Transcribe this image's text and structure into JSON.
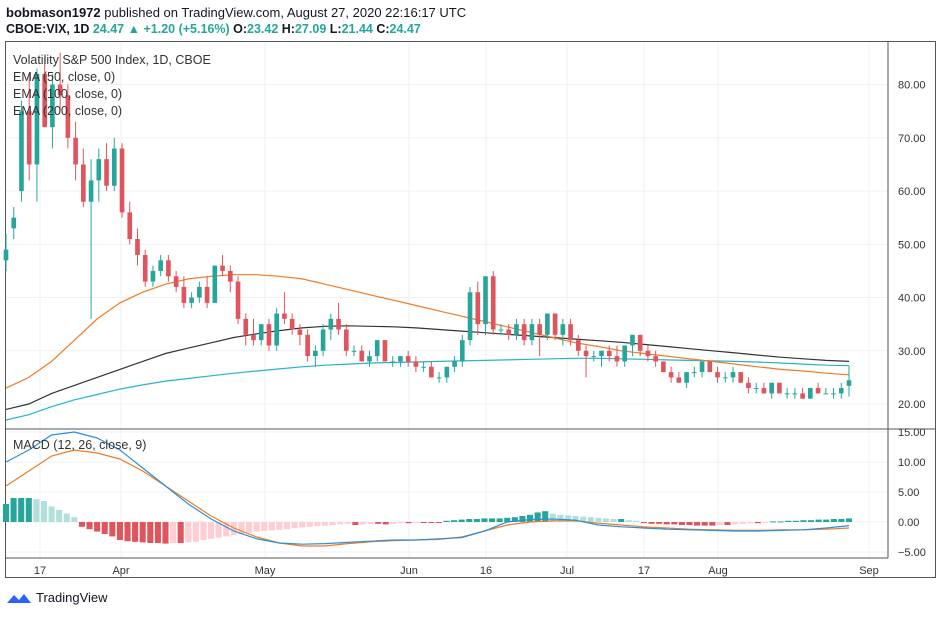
{
  "header": {
    "user": "bobmason1972",
    "published": " published on TradingView.com, August 27, 2020 22:16:17 UTC",
    "symbol": "CBOE:VIX, 1D",
    "last": "24.47",
    "change_arrow": "▲",
    "change": "+1.20 (+5.16%)",
    "o_label": "O:",
    "o_value": "23.42",
    "h_label": "H:",
    "h_value": "27.09",
    "l_label": "L:",
    "l_value": "21.44",
    "c_label": "C:",
    "c_value": "24.47"
  },
  "legend": {
    "title": "Volatility S&P 500 Index, 1D, CBOE",
    "ema50": "EMA (50, close, 0)",
    "ema100": "EMA (100, close, 0)",
    "ema200": "EMA (200, close, 0)",
    "macd": "MACD (12, 26, close, 9)"
  },
  "footer": {
    "brand": "TradingView",
    "logo_icon": "tradingview-logo-icon"
  },
  "colors": {
    "up": "#26a69a",
    "down": "#e0545e",
    "ema50": "#f07b22",
    "ema100": "#333333",
    "ema200": "#27b3c9",
    "macd": "#2a8fde",
    "signal": "#f07b22",
    "hist_up_strong": "#26a69a",
    "hist_up_weak": "#b2dfdb",
    "hist_down_strong": "#e0545e",
    "hist_down_weak": "#ffcdd2"
  },
  "chart_data": [
    {
      "type": "candlestick",
      "title": "Volatility S&P 500 Index, 1D, CBOE",
      "x_ticks": [
        "17",
        "Apr",
        "May",
        "Jun",
        "16",
        "Jul",
        "17",
        "Aug",
        "Sep"
      ],
      "y_ticks": [
        "20.00",
        "30.00",
        "40.00",
        "50.00",
        "60.00",
        "70.00",
        "80.00"
      ],
      "ylim": [
        15.5,
        88
      ],
      "candles": [
        {
          "o": 47,
          "h": 52,
          "l": 45,
          "c": 49
        },
        {
          "o": 53,
          "h": 57,
          "l": 51,
          "c": 55
        },
        {
          "o": 60,
          "h": 77,
          "l": 58,
          "c": 75
        },
        {
          "o": 75,
          "h": 82,
          "l": 62,
          "c": 65
        },
        {
          "o": 65,
          "h": 83,
          "l": 58,
          "c": 82
        },
        {
          "o": 82,
          "h": 85,
          "l": 72,
          "c": 72
        },
        {
          "o": 72,
          "h": 82,
          "l": 68,
          "c": 80
        },
        {
          "o": 80,
          "h": 86,
          "l": 75,
          "c": 78
        },
        {
          "o": 78,
          "h": 80,
          "l": 68,
          "c": 70
        },
        {
          "o": 70,
          "h": 73,
          "l": 62,
          "c": 65
        },
        {
          "o": 65,
          "h": 68,
          "l": 57,
          "c": 58
        },
        {
          "o": 58,
          "h": 66,
          "l": 36,
          "c": 62
        },
        {
          "o": 62,
          "h": 68,
          "l": 58,
          "c": 66
        },
        {
          "o": 66,
          "h": 69,
          "l": 60,
          "c": 61
        },
        {
          "o": 61,
          "h": 70,
          "l": 60,
          "c": 68
        },
        {
          "o": 68,
          "h": 69,
          "l": 55,
          "c": 56
        },
        {
          "o": 56,
          "h": 58,
          "l": 50,
          "c": 51
        },
        {
          "o": 51,
          "h": 53,
          "l": 46,
          "c": 48
        },
        {
          "o": 48,
          "h": 49,
          "l": 42,
          "c": 43
        },
        {
          "o": 43,
          "h": 46,
          "l": 42,
          "c": 45
        },
        {
          "o": 45,
          "h": 48,
          "l": 44,
          "c": 47
        },
        {
          "o": 47,
          "h": 48,
          "l": 43,
          "c": 44
        },
        {
          "o": 44,
          "h": 45,
          "l": 41,
          "c": 42
        },
        {
          "o": 42,
          "h": 44,
          "l": 38,
          "c": 39
        },
        {
          "o": 39,
          "h": 41,
          "l": 38,
          "c": 40
        },
        {
          "o": 40,
          "h": 43,
          "l": 39,
          "c": 42
        },
        {
          "o": 42,
          "h": 44,
          "l": 38,
          "c": 39
        },
        {
          "o": 39,
          "h": 46,
          "l": 39,
          "c": 46
        },
        {
          "o": 46,
          "h": 48,
          "l": 44,
          "c": 45
        },
        {
          "o": 45,
          "h": 46,
          "l": 41,
          "c": 43
        },
        {
          "o": 43,
          "h": 44,
          "l": 35,
          "c": 36
        },
        {
          "o": 36,
          "h": 37,
          "l": 31,
          "c": 33
        },
        {
          "o": 33,
          "h": 36,
          "l": 31,
          "c": 32
        },
        {
          "o": 32,
          "h": 35,
          "l": 31,
          "c": 35
        },
        {
          "o": 35,
          "h": 36,
          "l": 30,
          "c": 31
        },
        {
          "o": 31,
          "h": 38,
          "l": 30,
          "c": 37
        },
        {
          "o": 37,
          "h": 41,
          "l": 35,
          "c": 36
        },
        {
          "o": 36,
          "h": 37,
          "l": 33,
          "c": 34
        },
        {
          "o": 34,
          "h": 35,
          "l": 31,
          "c": 33
        },
        {
          "o": 33,
          "h": 34,
          "l": 28,
          "c": 29
        },
        {
          "o": 29,
          "h": 31,
          "l": 27,
          "c": 30
        },
        {
          "o": 30,
          "h": 35,
          "l": 29,
          "c": 34
        },
        {
          "o": 34,
          "h": 37,
          "l": 32,
          "c": 36
        },
        {
          "o": 36,
          "h": 39,
          "l": 33,
          "c": 34
        },
        {
          "o": 34,
          "h": 35,
          "l": 29,
          "c": 30
        },
        {
          "o": 30,
          "h": 31,
          "l": 29,
          "c": 30
        },
        {
          "o": 30,
          "h": 31,
          "l": 28,
          "c": 28
        },
        {
          "o": 28,
          "h": 30,
          "l": 27,
          "c": 29
        },
        {
          "o": 29,
          "h": 32,
          "l": 28,
          "c": 32
        },
        {
          "o": 32,
          "h": 32,
          "l": 28,
          "c": 28
        },
        {
          "o": 28,
          "h": 29,
          "l": 27,
          "c": 28
        },
        {
          "o": 28,
          "h": 29,
          "l": 27,
          "c": 29
        },
        {
          "o": 29,
          "h": 30,
          "l": 27,
          "c": 28
        },
        {
          "o": 28,
          "h": 29,
          "l": 26,
          "c": 27
        },
        {
          "o": 27,
          "h": 28,
          "l": 26,
          "c": 27
        },
        {
          "o": 27,
          "h": 28,
          "l": 25,
          "c": 25
        },
        {
          "o": 25,
          "h": 26,
          "l": 24,
          "c": 25
        },
        {
          "o": 25,
          "h": 27,
          "l": 24,
          "c": 27
        },
        {
          "o": 27,
          "h": 29,
          "l": 26,
          "c": 28
        },
        {
          "o": 28,
          "h": 33,
          "l": 27,
          "c": 32
        },
        {
          "o": 32,
          "h": 42,
          "l": 31,
          "c": 41
        },
        {
          "o": 41,
          "h": 43,
          "l": 33,
          "c": 35
        },
        {
          "o": 35,
          "h": 44,
          "l": 33,
          "c": 44
        },
        {
          "o": 44,
          "h": 45,
          "l": 33,
          "c": 34
        },
        {
          "o": 34,
          "h": 35,
          "l": 33,
          "c": 34
        },
        {
          "o": 34,
          "h": 35,
          "l": 32,
          "c": 33
        },
        {
          "o": 33,
          "h": 36,
          "l": 32,
          "c": 35
        },
        {
          "o": 35,
          "h": 36,
          "l": 31,
          "c": 32
        },
        {
          "o": 32,
          "h": 36,
          "l": 31,
          "c": 35
        },
        {
          "o": 35,
          "h": 36,
          "l": 29,
          "c": 33
        },
        {
          "o": 33,
          "h": 37,
          "l": 32,
          "c": 37
        },
        {
          "o": 37,
          "h": 37,
          "l": 32,
          "c": 33
        },
        {
          "o": 33,
          "h": 36,
          "l": 31,
          "c": 35
        },
        {
          "o": 35,
          "h": 36,
          "l": 31,
          "c": 32
        },
        {
          "o": 32,
          "h": 33,
          "l": 29,
          "c": 30
        },
        {
          "o": 30,
          "h": 31,
          "l": 25,
          "c": 29
        },
        {
          "o": 29,
          "h": 30,
          "l": 28,
          "c": 29
        },
        {
          "o": 29,
          "h": 30,
          "l": 27,
          "c": 30
        },
        {
          "o": 30,
          "h": 31,
          "l": 28,
          "c": 29
        },
        {
          "o": 29,
          "h": 31,
          "l": 27,
          "c": 28
        },
        {
          "o": 28,
          "h": 31,
          "l": 27,
          "c": 31
        },
        {
          "o": 31,
          "h": 33,
          "l": 29,
          "c": 33
        },
        {
          "o": 33,
          "h": 33,
          "l": 29,
          "c": 30
        },
        {
          "o": 30,
          "h": 31,
          "l": 28,
          "c": 29
        },
        {
          "o": 29,
          "h": 30,
          "l": 27,
          "c": 28
        },
        {
          "o": 28,
          "h": 28,
          "l": 26,
          "c": 26
        },
        {
          "o": 26,
          "h": 27,
          "l": 24,
          "c": 25
        },
        {
          "o": 25,
          "h": 26,
          "l": 24,
          "c": 24
        },
        {
          "o": 24,
          "h": 26,
          "l": 23,
          "c": 26
        },
        {
          "o": 26,
          "h": 27,
          "l": 25,
          "c": 26
        },
        {
          "o": 26,
          "h": 28,
          "l": 25,
          "c": 28
        },
        {
          "o": 28,
          "h": 28,
          "l": 26,
          "c": 26
        },
        {
          "o": 26,
          "h": 27,
          "l": 24,
          "c": 25
        },
        {
          "o": 25,
          "h": 26,
          "l": 24,
          "c": 25
        },
        {
          "o": 25,
          "h": 27,
          "l": 24,
          "c": 26
        },
        {
          "o": 26,
          "h": 26,
          "l": 24,
          "c": 24
        },
        {
          "o": 24,
          "h": 25,
          "l": 22,
          "c": 23
        },
        {
          "o": 23,
          "h": 24,
          "l": 22,
          "c": 23
        },
        {
          "o": 23,
          "h": 24,
          "l": 22,
          "c": 22
        },
        {
          "o": 22,
          "h": 24,
          "l": 21,
          "c": 24
        },
        {
          "o": 24,
          "h": 24,
          "l": 22,
          "c": 22
        },
        {
          "o": 22,
          "h": 23,
          "l": 21,
          "c": 22
        },
        {
          "o": 22,
          "h": 23,
          "l": 21,
          "c": 22
        },
        {
          "o": 22,
          "h": 23,
          "l": 21,
          "c": 21
        },
        {
          "o": 21,
          "h": 23,
          "l": 21,
          "c": 23
        },
        {
          "o": 23,
          "h": 24,
          "l": 22,
          "c": 22
        },
        {
          "o": 22,
          "h": 23,
          "l": 22,
          "c": 22
        },
        {
          "o": 22,
          "h": 23,
          "l": 21,
          "c": 22
        },
        {
          "o": 22,
          "h": 24,
          "l": 21,
          "c": 23
        },
        {
          "o": 23.42,
          "h": 27.09,
          "l": 21.44,
          "c": 24.47
        }
      ],
      "ema50": [
        23,
        25,
        28,
        32,
        36,
        39,
        41,
        42.5,
        43.5,
        44,
        44.3,
        44.3,
        44,
        43.5,
        42.5,
        41.5,
        40.5,
        39.5,
        38.5,
        37.5,
        36.5,
        35.5,
        34.5,
        33.5,
        32.5,
        31.5,
        30.8,
        30,
        29.5,
        29,
        28.5,
        28,
        27.5,
        27,
        26.5,
        26.2,
        25.8,
        25.5
      ],
      "ema100": [
        19,
        20,
        22,
        23.5,
        25,
        26.5,
        28,
        29.5,
        30.5,
        31.5,
        32.5,
        33.2,
        33.8,
        34.3,
        34.6,
        34.7,
        34.6,
        34.5,
        34.3,
        34.0,
        33.7,
        33.4,
        33.1,
        32.8,
        32.5,
        32.2,
        31.9,
        31.6,
        31.2,
        30.8,
        30.4,
        30,
        29.6,
        29.2,
        28.8,
        28.5,
        28.2,
        28
      ],
      "ema200": [
        17,
        18,
        19.5,
        20.8,
        21.8,
        22.8,
        23.6,
        24.3,
        24.8,
        25.3,
        25.8,
        26.2,
        26.6,
        27,
        27.3,
        27.5,
        27.7,
        27.8,
        27.9,
        28,
        28.1,
        28.2,
        28.3,
        28.4,
        28.5,
        28.6,
        28.6,
        28.5,
        28.4,
        28.3,
        28.2,
        28.1,
        28,
        27.9,
        27.7,
        27.5,
        27.3,
        27.2
      ]
    },
    {
      "type": "macd",
      "title": "MACD (12, 26, close, 9)",
      "y_ticks": [
        "15.00",
        "10.00",
        "5.00",
        "0.00",
        "−5.00"
      ],
      "ylim": [
        -6,
        15.5
      ],
      "macd": [
        10,
        12,
        14.5,
        15,
        14,
        12,
        9,
        6,
        3,
        0.5,
        -1.5,
        -2.8,
        -3.5,
        -3.7,
        -3.6,
        -3.4,
        -3.2,
        -3,
        -3,
        -2.8,
        -2.6,
        -1.5,
        0,
        0.4,
        0.5,
        0.3,
        -0.5,
        -0.8,
        -1,
        -1.2,
        -1.3,
        -1.4,
        -1.5,
        -1.5,
        -1.4,
        -1.3,
        -1,
        -0.6
      ],
      "signal": [
        6,
        8.5,
        11,
        12,
        11.5,
        10.5,
        8.5,
        6,
        3.5,
        1,
        -1,
        -2.5,
        -3.5,
        -4,
        -4,
        -3.6,
        -3.3,
        -3.1,
        -3,
        -2.9,
        -2.5,
        -1.5,
        -0.5,
        0,
        0.2,
        0.2,
        -0.2,
        -0.5,
        -0.8,
        -1,
        -1.2,
        -1.3,
        -1.4,
        -1.4,
        -1.3,
        -1.3,
        -1.2,
        -1.0
      ],
      "histogram": [
        3,
        4,
        4,
        4,
        3.8,
        3.5,
        2.6,
        2,
        1.4,
        0.8,
        -0.8,
        -1.2,
        -1.6,
        -2,
        -2.4,
        -3,
        -3.2,
        -3.3,
        -3.4,
        -3.5,
        -3.5,
        -3.6,
        -3.5,
        -3.5,
        -3.4,
        -3.3,
        -3.0,
        -2.8,
        -2.6,
        -2.4,
        -2.2,
        -2,
        -1.8,
        -1.6,
        -1.5,
        -1.4,
        -1.3,
        -1.2,
        -1,
        -0.9,
        -0.8,
        -0.7,
        -0.6,
        -0.5,
        -0.4,
        -0.3,
        -0.5,
        -0.4,
        -0.3,
        -0.3,
        -0.4,
        -0.3,
        -0.2,
        -0.2,
        -0.1,
        -0.1,
        -0.1,
        -0.1,
        0.2,
        0.3,
        0.4,
        0.5,
        0.5,
        0.6,
        0.6,
        0.6,
        0.7,
        0.8,
        1.0,
        1.2,
        1.6,
        1.8,
        1.4,
        1.2,
        1.1,
        1.0,
        0.9,
        0.8,
        0.7,
        0.6,
        0.5,
        0.5,
        0.3,
        0.2,
        -0.1,
        -0.3,
        -0.3,
        -0.4,
        -0.4,
        -0.5,
        -0.5,
        -0.6,
        -0.6,
        -0.6,
        -0.5,
        -0.5,
        -0.4,
        -0.3,
        -0.2,
        -0.2,
        -0.1,
        0.1,
        0.1,
        0.2,
        0.2,
        0.3,
        0.3,
        0.4,
        0.4,
        0.5,
        0.5,
        0.6
      ]
    }
  ]
}
